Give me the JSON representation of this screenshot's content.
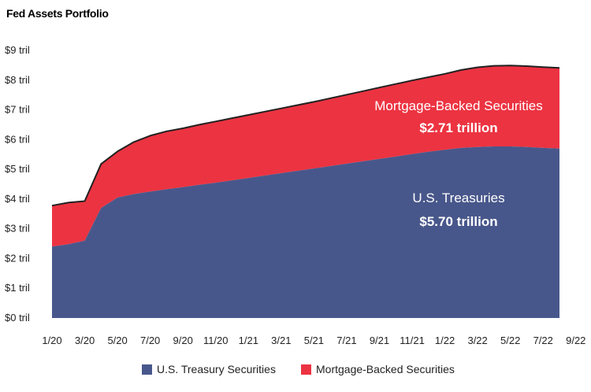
{
  "title": "Fed Assets Portfolio",
  "colors": {
    "treasuries": "#48578b",
    "mbs": "#ec3341",
    "total_line": "#222222"
  },
  "chart_data": {
    "type": "area",
    "stacked": true,
    "title": "Fed Assets Portfolio",
    "xlabel": "",
    "ylabel": "",
    "x_start": "1/20",
    "x_end": "8/22",
    "x_ticks": [
      "1/20",
      "3/20",
      "5/20",
      "7/20",
      "9/20",
      "11/20",
      "1/21",
      "3/21",
      "5/21",
      "7/21",
      "9/21",
      "11/21",
      "1/22",
      "3/22",
      "5/22",
      "7/22",
      "9/22"
    ],
    "y_ticks": [
      "$0 tril",
      "$1 tril",
      "$2 tril",
      "$3 tril",
      "$4 tril",
      "$5 tril",
      "$6 tril",
      "$7 tril",
      "$8 tril",
      "$9 tril"
    ],
    "ylim": [
      0,
      9
    ],
    "grid": false,
    "legend_position": "bottom",
    "x": [
      "1/20",
      "2/20",
      "3/20",
      "4/20",
      "5/20",
      "6/20",
      "7/20",
      "8/20",
      "9/20",
      "10/20",
      "11/20",
      "12/20",
      "1/21",
      "2/21",
      "3/21",
      "4/21",
      "5/21",
      "6/21",
      "7/21",
      "8/21",
      "9/21",
      "10/21",
      "11/21",
      "12/21",
      "1/22",
      "2/22",
      "3/22",
      "4/22",
      "5/22",
      "6/22",
      "7/22",
      "8/22"
    ],
    "series": [
      {
        "name": "U.S. Treasury Securities",
        "color": "#48578b",
        "values": [
          2.4,
          2.48,
          2.6,
          3.7,
          4.05,
          4.17,
          4.25,
          4.33,
          4.4,
          4.48,
          4.55,
          4.63,
          4.71,
          4.79,
          4.87,
          4.95,
          5.03,
          5.11,
          5.19,
          5.27,
          5.35,
          5.43,
          5.51,
          5.59,
          5.66,
          5.72,
          5.75,
          5.77,
          5.77,
          5.75,
          5.72,
          5.7
        ],
        "label": "U.S. Treasuries",
        "value_label": "$5.70 trillion"
      },
      {
        "name": "Mortgage-Backed Securities",
        "color": "#ec3341",
        "values": [
          1.38,
          1.4,
          1.33,
          1.48,
          1.55,
          1.75,
          1.88,
          1.95,
          1.98,
          2.02,
          2.06,
          2.09,
          2.12,
          2.15,
          2.18,
          2.21,
          2.24,
          2.28,
          2.32,
          2.36,
          2.4,
          2.44,
          2.48,
          2.51,
          2.55,
          2.62,
          2.68,
          2.71,
          2.72,
          2.72,
          2.72,
          2.71
        ],
        "label": "Mortgage-Backed Securities",
        "value_label": "$2.71 trillion"
      }
    ]
  }
}
